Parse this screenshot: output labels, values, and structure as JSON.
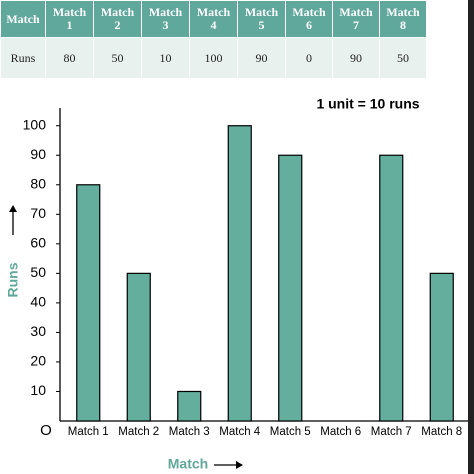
{
  "table": {
    "header": [
      "Match",
      "Match 1",
      "Match 2",
      "Match 3",
      "Match 4",
      "Match 5",
      "Match 6",
      "Match 7",
      "Match 8"
    ],
    "rows": [
      [
        "Runs",
        80,
        50,
        10,
        100,
        90,
        0,
        90,
        50
      ]
    ]
  },
  "chart_data": {
    "type": "bar",
    "annotation": "1 unit = 10 runs",
    "x_label": "Match",
    "y_label": "Runs",
    "origin_label": "O",
    "categories": [
      "Match 1",
      "Match 2",
      "Match 3",
      "Match 4",
      "Match 5",
      "Match 6",
      "Match 7",
      "Match 8"
    ],
    "values": [
      80,
      50,
      10,
      100,
      90,
      0,
      90,
      50
    ],
    "color": "#64ae9e",
    "ylim": [
      0,
      106
    ],
    "yticks": [
      10,
      20,
      30,
      40,
      50,
      60,
      70,
      80,
      90,
      100
    ],
    "grid": false
  }
}
